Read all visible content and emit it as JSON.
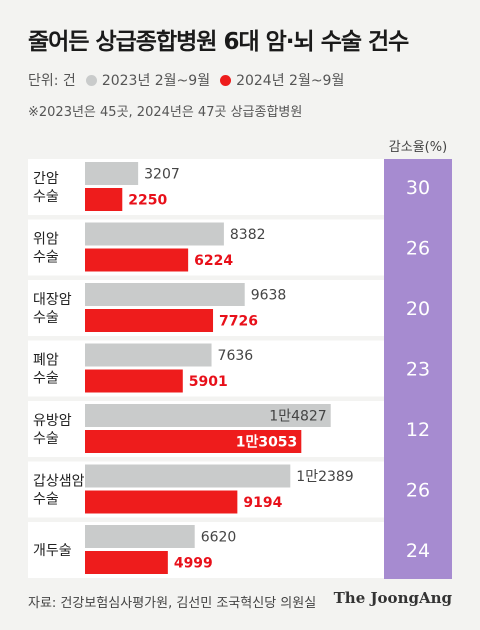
{
  "title": "줄어든 상급종합병원 6대 암·뇌 수술 건수",
  "legend": {
    "unit": "단위: 건",
    "series_2023": "2023년 2월~9월",
    "series_2024": "2024년 2월~9월"
  },
  "note": "※2023년은 45곳, 2024년은 47곳 상급종합병원",
  "rate_header": "감소율(%)",
  "source": "자료: 건강보험심사평가원, 김선민 조국혁신당 의원실",
  "brand": "The JoongAng",
  "colors": {
    "bar_2023": "#c9cbcb",
    "bar_2024": "#ee1c1c",
    "rate_bg": "#a68bd0",
    "label_2024": "#e8101a"
  },
  "chart_data": {
    "type": "bar",
    "orientation": "horizontal",
    "categories": [
      [
        "간암",
        "수술"
      ],
      [
        "위암",
        "수술"
      ],
      [
        "대장암",
        "수술"
      ],
      [
        "폐암",
        "수술"
      ],
      [
        "유방암",
        "수술"
      ],
      [
        "갑상샘암",
        "수술"
      ],
      [
        "개두술"
      ]
    ],
    "series": [
      {
        "name": "2023년 2월~9월",
        "values": [
          3207,
          8382,
          9638,
          7636,
          14827,
          12389,
          6620
        ],
        "labels": [
          "3207",
          "8382",
          "9638",
          "7636",
          "1만4827",
          "1만2389",
          "6620"
        ]
      },
      {
        "name": "2024년 2월~9월",
        "values": [
          2250,
          6224,
          7726,
          5901,
          13053,
          9194,
          4999
        ],
        "labels": [
          "2250",
          "6224",
          "7726",
          "5901",
          "1만3053",
          "9194",
          "4999"
        ]
      }
    ],
    "decrease_rate": [
      "30",
      "26",
      "20",
      "23",
      "12",
      "26",
      "24"
    ],
    "xlim": [
      0,
      17500
    ]
  }
}
